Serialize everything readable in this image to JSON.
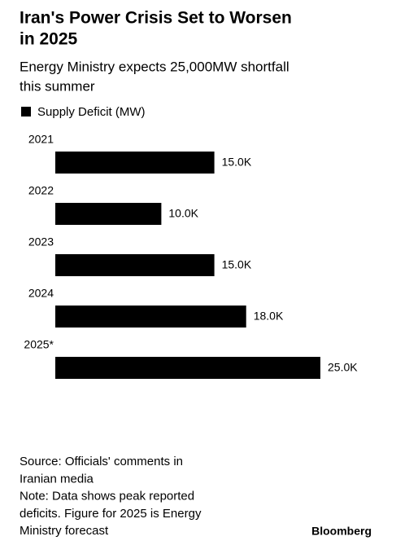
{
  "chart_data": {
    "type": "hbar",
    "title": [
      "Iran's Power Crisis Set to Worsen",
      "in 2025"
    ],
    "subtitle": [
      "Energy Ministry expects 25,000MW shortfall",
      "this summer"
    ],
    "categories": [
      "2021",
      "2022",
      "2023",
      "2024",
      "2025*"
    ],
    "series": [
      {
        "name": "Supply Deficit (MW)",
        "color": "#000000",
        "values": [
          15000,
          10000,
          15000,
          18000,
          25000
        ],
        "value_labels": [
          "15.0K",
          "10.0K",
          "15.0K",
          "18.0K",
          "25.0K"
        ]
      }
    ],
    "source": [
      "Source: Officials' comments in",
      "Iranian media"
    ],
    "note": [
      "Note: Data shows peak reported",
      "deficits. Figure for 2025 is Energy",
      "Ministry forecast"
    ],
    "credit": "Bloomberg"
  }
}
